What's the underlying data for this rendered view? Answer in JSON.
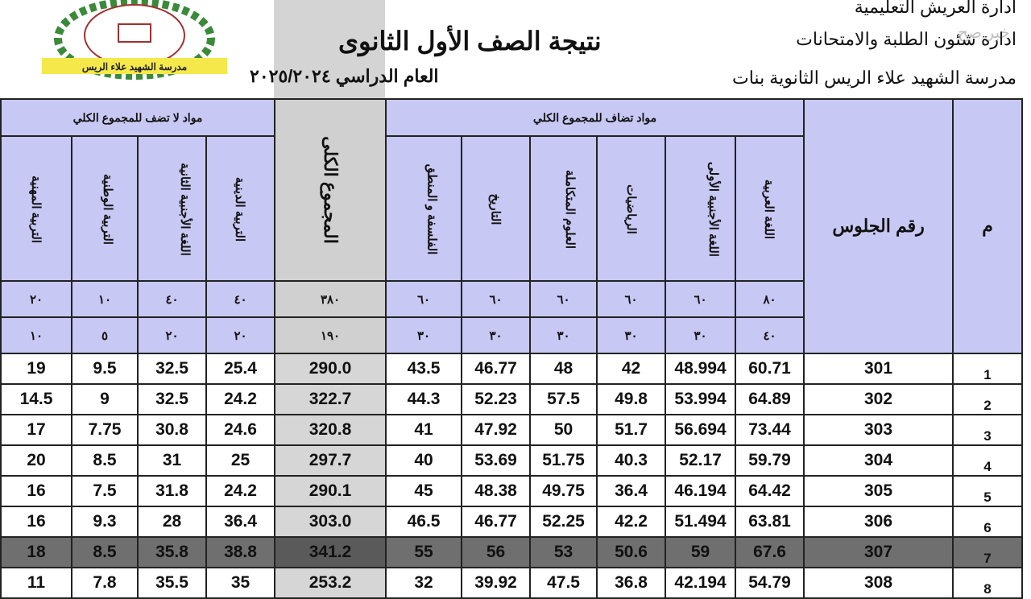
{
  "header": {
    "admin_line1": "ادارة العريش التعليمية",
    "admin_line2": "ادارة شئون الطلبة والامتحانات",
    "school": "مدرسة الشهيد علاء الريس الثانوية بنات",
    "title": "نتيجة الصف الأول الثانوى",
    "year": "العام الدراسي ٢٠٢٥/٢٠٢٤",
    "watermark": "خبر صح",
    "logo_text": "مدرسة الشهيد علاء الريس"
  },
  "table": {
    "group_not_added": "مواد لا تضف للمجموع الكلي",
    "group_added": "مواد تضاف للمجموع الكلي",
    "columns": [
      "التربية المهنية",
      "التربية الوطنية",
      "اللغة الأجنبية الثانية",
      "التربية الدينية",
      "المجموع الكلى",
      "الفلسفة و المنطق",
      "التاريخ",
      "العلوم المتكاملة",
      "الرياضيات",
      "اللغة الأجنبية الأولى",
      "اللغة العربية",
      "رقم الجلوس",
      "م"
    ],
    "max_marks": [
      "٢٠",
      "١٠",
      "٤٠",
      "٤٠",
      "٣٨٠",
      "٦٠",
      "٦٠",
      "٦٠",
      "٦٠",
      "٦٠",
      "٨٠"
    ],
    "min_marks": [
      "١٠",
      "٥",
      "٢٠",
      "٢٠",
      "١٩٠",
      "٣٠",
      "٣٠",
      "٣٠",
      "٣٠",
      "٣٠",
      "٤٠"
    ],
    "rows": [
      [
        "19",
        "9.5",
        "32.5",
        "25.4",
        "290.0",
        "43.5",
        "46.77",
        "48",
        "42",
        "48.994",
        "60.71",
        "301",
        "1"
      ],
      [
        "14.5",
        "9",
        "32.5",
        "24.2",
        "322.7",
        "44.3",
        "52.23",
        "57.5",
        "49.8",
        "53.994",
        "64.89",
        "302",
        "2"
      ],
      [
        "17",
        "7.75",
        "30.8",
        "24.6",
        "320.8",
        "41",
        "47.92",
        "50",
        "51.7",
        "56.694",
        "73.44",
        "303",
        "3"
      ],
      [
        "20",
        "8.5",
        "31",
        "25",
        "297.7",
        "40",
        "53.69",
        "51.75",
        "40.3",
        "52.17",
        "59.79",
        "304",
        "4"
      ],
      [
        "16",
        "7.5",
        "31.8",
        "24.2",
        "290.1",
        "45",
        "48.38",
        "49.75",
        "36.4",
        "46.194",
        "64.42",
        "305",
        "5"
      ],
      [
        "16",
        "9.3",
        "28",
        "36.4",
        "303.0",
        "46.5",
        "46.77",
        "52.25",
        "42.2",
        "51.494",
        "63.81",
        "306",
        "6"
      ],
      [
        "18",
        "8.5",
        "35.8",
        "38.8",
        "341.2",
        "55",
        "56",
        "53",
        "50.6",
        "59",
        "67.6",
        "307",
        "7"
      ],
      [
        "11",
        "7.8",
        "35.5",
        "35",
        "253.2",
        "32",
        "39.92",
        "47.5",
        "36.8",
        "42.194",
        "54.79",
        "308",
        "8"
      ]
    ],
    "highlighted_row": 7
  }
}
